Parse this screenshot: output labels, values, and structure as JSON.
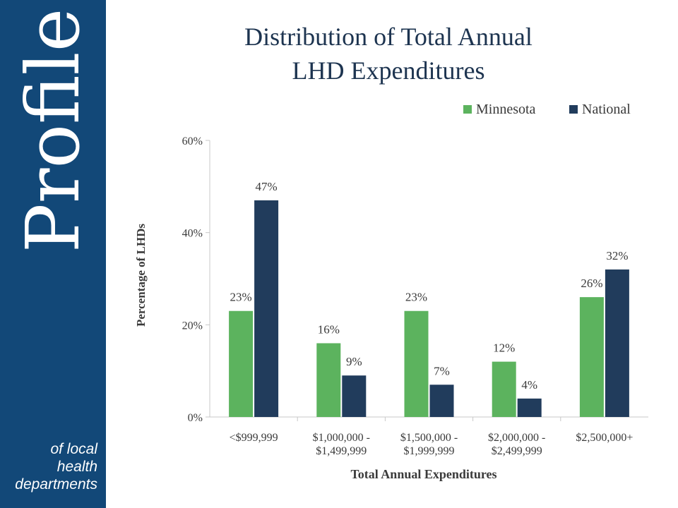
{
  "brand": {
    "word": "Profile",
    "tagline": [
      "of local",
      "health",
      "departments"
    ],
    "color": "#124878"
  },
  "chart_data": {
    "type": "bar",
    "title": [
      "Distribution of Total Annual",
      "LHD Expenditures"
    ],
    "xlabel": "Total Annual Expenditures",
    "ylabel": "Percentage of LHDs",
    "ylim": [
      0,
      60
    ],
    "yticks": [
      0,
      20,
      40,
      60
    ],
    "ytick_labels": [
      "0%",
      "20%",
      "40%",
      "60%"
    ],
    "categories": [
      [
        "<$999,999"
      ],
      [
        "$1,000,000 -",
        "$1,499,999"
      ],
      [
        "$1,500,000 -",
        "$1,999,999"
      ],
      [
        "$2,000,000 -",
        "$2,499,999"
      ],
      [
        "$2,500,000+"
      ]
    ],
    "series": [
      {
        "name": "Minnesota",
        "color": "#5cb35e",
        "values": [
          23,
          16,
          23,
          12,
          26
        ],
        "labels": [
          "23%",
          "16%",
          "23%",
          "12%",
          "26%"
        ]
      },
      {
        "name": "National",
        "color": "#213c5c",
        "values": [
          47,
          9,
          7,
          4,
          32
        ],
        "labels": [
          "47%",
          "9%",
          "7%",
          "4%",
          "32%"
        ]
      }
    ],
    "legend": "top-right",
    "grid": false
  }
}
